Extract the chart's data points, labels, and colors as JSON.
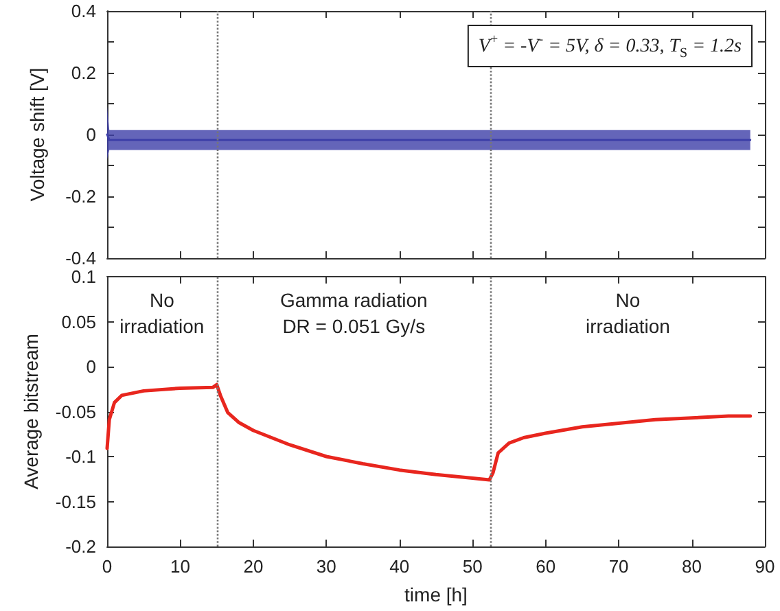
{
  "chart_data": [
    {
      "type": "line",
      "ylabel": "Voltage shift [V]",
      "annotations": [
        "V$^{+}$ = -V$^{-}$ = 5V, δ = 0.33, T$_{S}$ = 1.2s"
      ],
      "xlim": [
        0,
        90
      ],
      "xticks": [
        0,
        10,
        20,
        30,
        40,
        50,
        60,
        70,
        80,
        90
      ],
      "ylim": [
        -0.4,
        0.4
      ],
      "yticks": [
        -0.4,
        {
          "value": -0.3,
          "label": null
        },
        -0.2,
        {
          "value": -0.1,
          "label": null
        },
        0,
        {
          "value": 0.1,
          "label": null
        },
        0.2,
        {
          "value": 0.3,
          "label": null
        },
        0.4
      ],
      "tick_labels": "y",
      "grid": false,
      "series": [
        {
          "color": "#3d3fa8",
          "x": [
            0,
            0.3,
            88
          ],
          "values": [
            0,
            -0.017,
            -0.017
          ],
          "lower": [
            -0.08,
            -0.05,
            -0.05
          ],
          "upper": [
            0.09,
            0.015,
            0.015
          ]
        }
      ],
      "ref_lines": [
        {
          "axis": "x",
          "value": 15,
          "color": "#777777",
          "line_style": "dotted"
        },
        {
          "axis": "x",
          "value": 52.5,
          "color": "#777777",
          "line_style": "dotted"
        }
      ]
    },
    {
      "type": "line",
      "xlabel": "time [h]",
      "ylabel": "Average bitstream",
      "annotations": [
        "No\nirradiation",
        "Gamma radiation\nDR = 0.051 Gy/s",
        "No\nirradiation"
      ],
      "xlim": [
        0,
        90
      ],
      "xticks": [
        0,
        10,
        20,
        30,
        40,
        50,
        60,
        70,
        80,
        90
      ],
      "ylim": [
        -0.2,
        0.1
      ],
      "yticks": [
        -0.2,
        -0.15,
        -0.1,
        -0.05,
        0,
        0.05,
        0.1
      ],
      "grid": false,
      "series": [
        {
          "color": "#e8261e",
          "x": [
            0,
            0.3,
            1,
            2,
            5,
            10,
            14.5,
            15,
            15.5,
            16.5,
            18,
            20,
            25,
            30,
            35,
            40,
            45,
            50,
            52.3,
            52.8,
            53.5,
            55,
            57,
            60,
            65,
            70,
            75,
            80,
            85,
            88
          ],
          "values": [
            -0.091,
            -0.059,
            -0.04,
            -0.032,
            -0.027,
            -0.024,
            -0.023,
            -0.02,
            -0.032,
            -0.051,
            -0.062,
            -0.071,
            -0.087,
            -0.1,
            -0.108,
            -0.115,
            -0.12,
            -0.124,
            -0.126,
            -0.118,
            -0.096,
            -0.085,
            -0.079,
            -0.074,
            -0.067,
            -0.063,
            -0.059,
            -0.057,
            -0.055,
            -0.055
          ]
        }
      ],
      "ref_lines": [
        {
          "axis": "x",
          "value": 15,
          "color": "#777777",
          "line_style": "dotted"
        },
        {
          "axis": "x",
          "value": 52.5,
          "color": "#777777",
          "line_style": "dotted"
        }
      ]
    }
  ]
}
